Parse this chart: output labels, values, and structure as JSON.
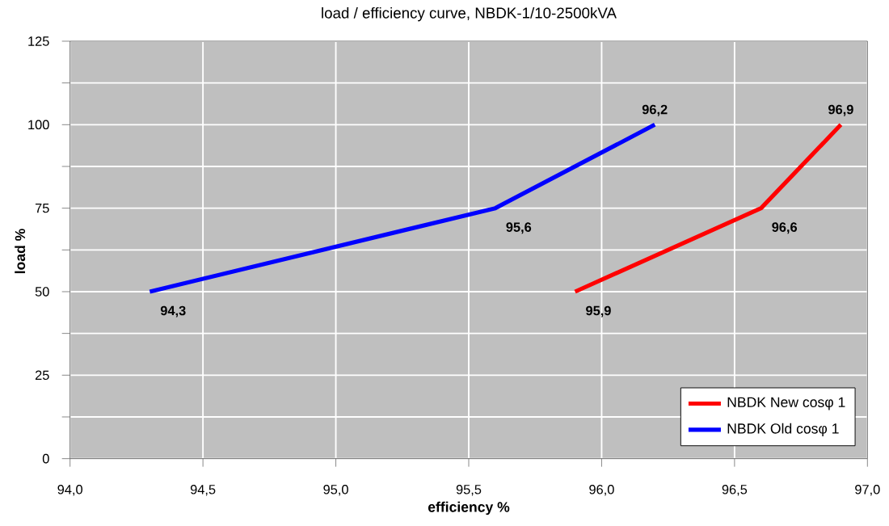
{
  "chart_data": {
    "type": "line",
    "title": "load / efficiency curve, NBDK-1/10-2500kVA",
    "xlabel": "efficiency %",
    "ylabel": "load %",
    "xlim": [
      94,
      97
    ],
    "xticks": [
      {
        "value": 94,
        "label": "94,0"
      },
      {
        "value": 94.5,
        "label": "94,5"
      },
      {
        "value": 95,
        "label": "95,0"
      },
      {
        "value": 95.5,
        "label": "95,5"
      },
      {
        "value": 96,
        "label": "96,0"
      },
      {
        "value": 96.5,
        "label": "96,5"
      },
      {
        "value": 97,
        "label": "97,0"
      }
    ],
    "ylim": [
      0,
      125
    ],
    "yticks": [
      0,
      {
        "value": 12.5,
        "label": null
      },
      25,
      {
        "value": 37.5,
        "label": null
      },
      50,
      {
        "value": 62.5,
        "label": null
      },
      75,
      {
        "value": 87.5,
        "label": null
      },
      100,
      {
        "value": 112.5,
        "label": null
      },
      125
    ],
    "grid": true,
    "legend": "bottom right",
    "marker": "none",
    "line_style": "solid",
    "series": [
      {
        "name": "NBDK New cosφ 1",
        "color": "#ff0000",
        "x": [
          95.9,
          96.6,
          96.9
        ],
        "values": [
          50,
          75,
          100
        ]
      },
      {
        "name": "NBDK Old cosφ 1",
        "color": "#0000ff",
        "x": [
          94.3,
          95.6,
          96.2
        ],
        "values": [
          50,
          75,
          100
        ]
      }
    ],
    "annotations": [
      {
        "text": "96,9",
        "x": 96.9,
        "y": 100
      },
      {
        "text": "96,6",
        "x": 96.6,
        "y": 75
      },
      {
        "text": "95,9",
        "x": 95.9,
        "y": 50
      },
      {
        "text": "96,2",
        "x": 96.2,
        "y": 100
      },
      {
        "text": "95,6",
        "x": 95.6,
        "y": 75
      },
      {
        "text": "94,3",
        "x": 94.3,
        "y": 50
      }
    ]
  }
}
